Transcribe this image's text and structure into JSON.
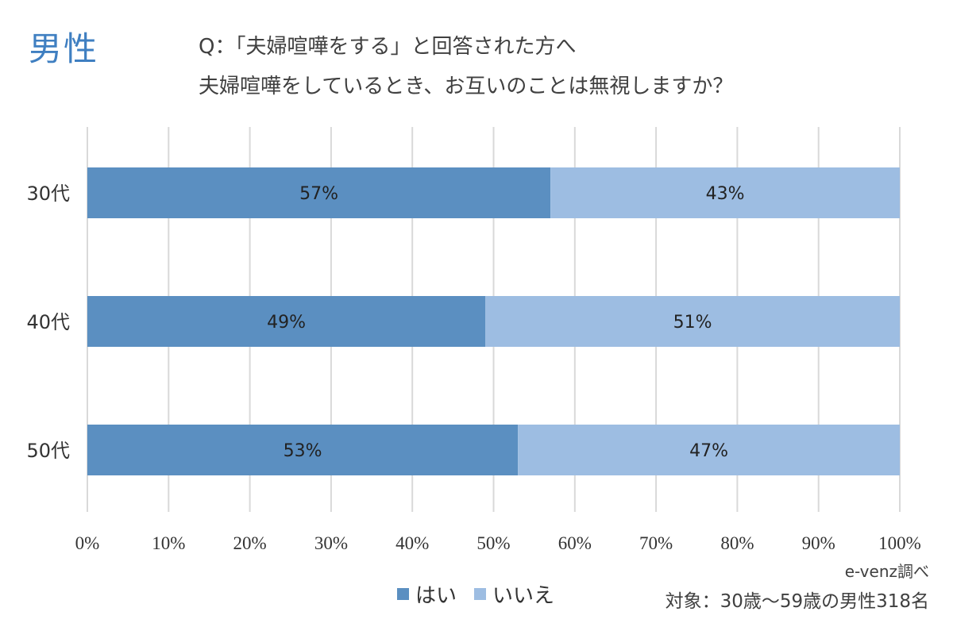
{
  "header": {
    "gender_label": "男性",
    "question_line1": "Q：「夫婦喧嘩をする」と回答された方へ",
    "question_line2": "夫婦喧嘩をしているとき、お互いのことは無視しますか？"
  },
  "footer": {
    "source": "e-venz調べ",
    "target": "対象：30歳～59歳の男性318名"
  },
  "colors": {
    "yes": "#5b8fc1",
    "no": "#9dbde2",
    "grid": "#d9d9d9",
    "title": "#3f7fc1"
  },
  "chart_data": {
    "type": "bar",
    "orientation": "horizontal",
    "stacked": true,
    "categories": [
      "30代",
      "40代",
      "50代"
    ],
    "series": [
      {
        "name": "はい",
        "values": [
          57,
          49,
          53
        ]
      },
      {
        "name": "いいえ",
        "values": [
          43,
          51,
          47
        ]
      }
    ],
    "data_labels": [
      [
        "57%",
        "49%",
        "53%"
      ],
      [
        "43%",
        "51%",
        "47%"
      ]
    ],
    "xlim": [
      0,
      100
    ],
    "x_ticks": [
      "0%",
      "10%",
      "20%",
      "30%",
      "40%",
      "50%",
      "60%",
      "70%",
      "80%",
      "90%",
      "100%"
    ],
    "grid": true,
    "legend_position": "bottom"
  }
}
